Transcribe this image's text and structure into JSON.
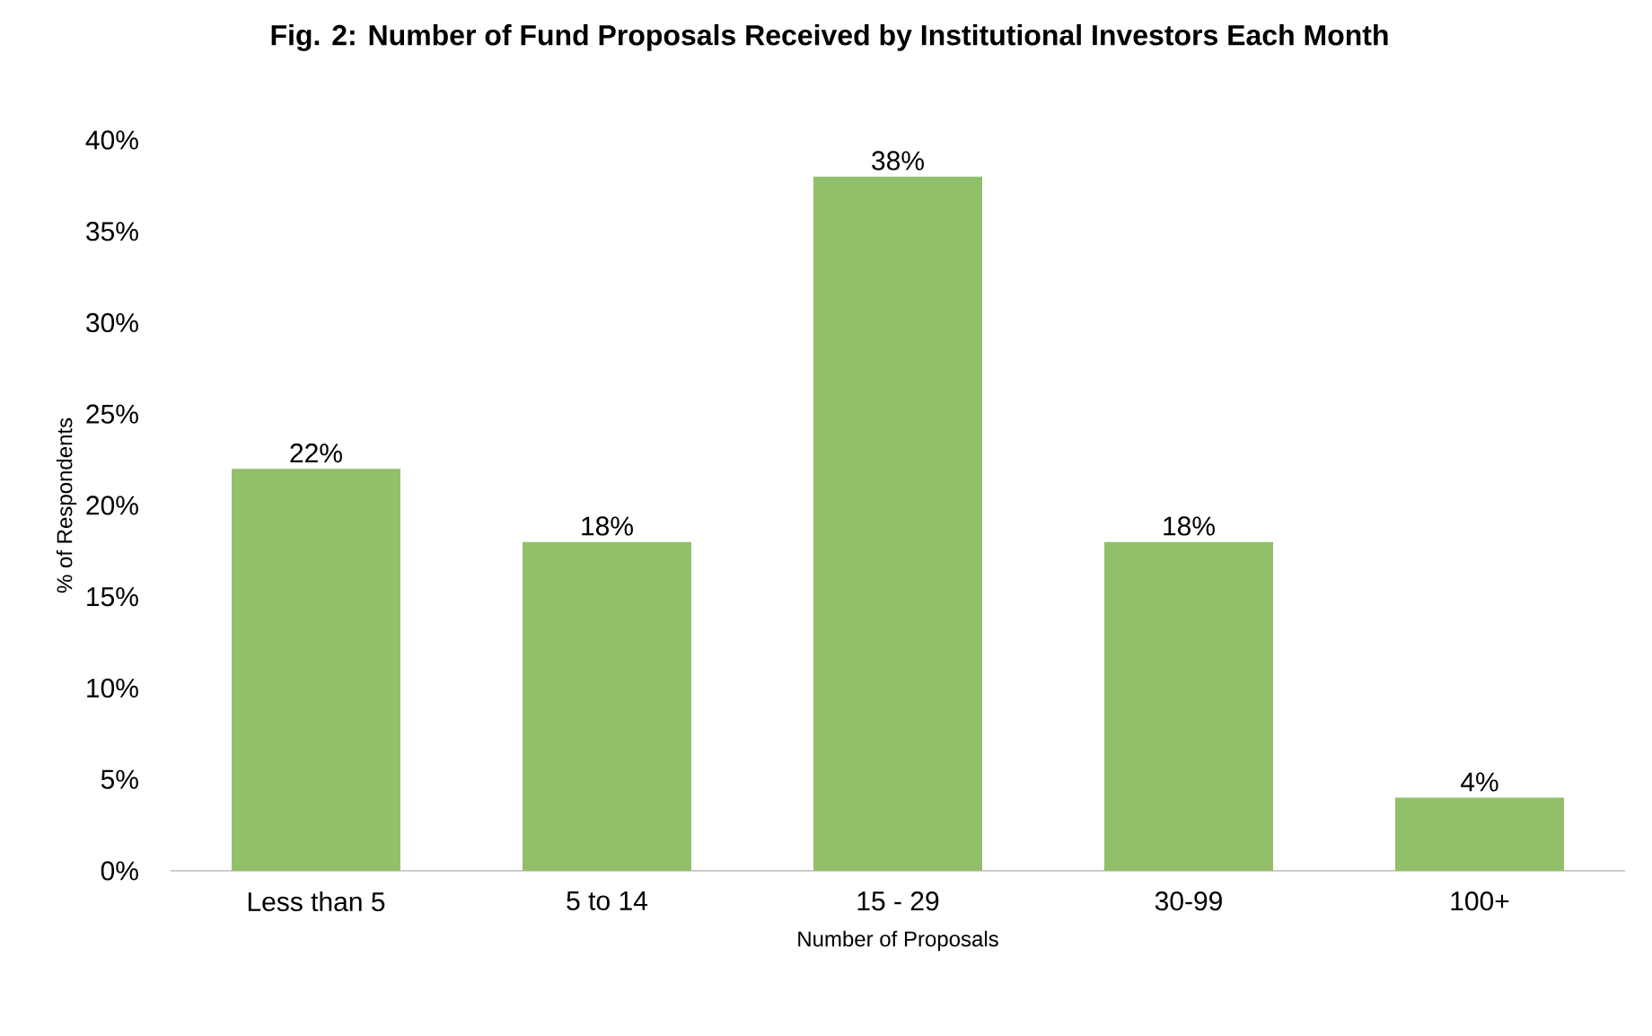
{
  "chart_data": {
    "type": "bar",
    "title": "Fig. 2: Number of Fund Proposals Received by Institutional Investors Each Month",
    "xlabel": "Number of Proposals",
    "ylabel": "% of Respondents",
    "categories": [
      "Less than 5",
      "5 to 14",
      "15 - 29",
      "30-99",
      "100+"
    ],
    "values": [
      22,
      18,
      38,
      18,
      4
    ],
    "value_labels": [
      "22%",
      "18%",
      "38%",
      "18%",
      "4%"
    ],
    "color": "#92c06a",
    "ylim": [
      0,
      40
    ],
    "yticks": [
      {
        "value": 0,
        "label": "0%"
      },
      {
        "value": 5,
        "label": "5%"
      },
      {
        "value": 10,
        "label": "10%"
      },
      {
        "value": 15,
        "label": "15%"
      },
      {
        "value": 20,
        "label": "20%"
      },
      {
        "value": 25,
        "label": "25%"
      },
      {
        "value": 30,
        "label": "30%"
      },
      {
        "value": 35,
        "label": "35%"
      },
      {
        "value": 40,
        "label": "40%"
      }
    ],
    "grid": false
  }
}
